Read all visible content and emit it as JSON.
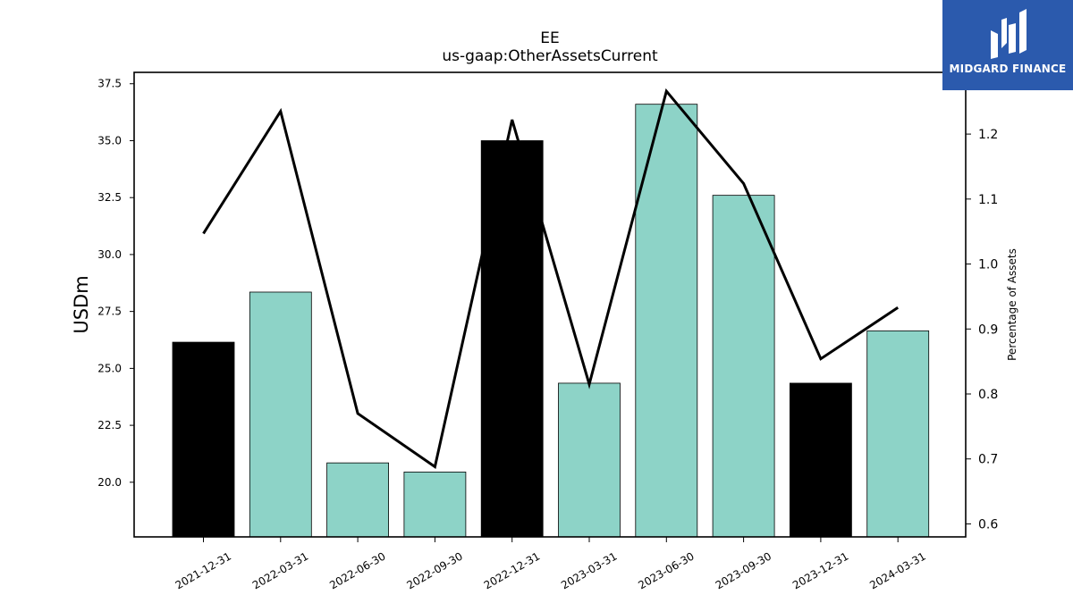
{
  "chart_data": {
    "type": "bar",
    "title": "EE",
    "subtitle": "us-gaap:OtherAssetsCurrent",
    "ylabel": "USDm",
    "ylabel_right": "Percentage of Assets",
    "categories": [
      "2021-12-31",
      "2022-03-31",
      "2022-06-30",
      "2022-09-30",
      "2022-12-31",
      "2023-03-31",
      "2023-06-30",
      "2023-09-30",
      "2023-12-31",
      "2024-03-31"
    ],
    "values": [
      26.15,
      28.35,
      20.85,
      20.45,
      35.0,
      24.35,
      36.6,
      32.6,
      24.35,
      26.65
    ],
    "bar_colors": [
      "#000000",
      "#8dd3c7",
      "#8dd3c7",
      "#8dd3c7",
      "#000000",
      "#8dd3c7",
      "#8dd3c7",
      "#8dd3c7",
      "#000000",
      "#8dd3c7"
    ],
    "line_series": {
      "name": "Percentage of Assets",
      "values": [
        1.047,
        1.235,
        0.77,
        0.688,
        1.222,
        0.815,
        1.266,
        1.124,
        0.854,
        0.933
      ],
      "color": "#000000"
    },
    "ylim": [
      17.6,
      38.0
    ],
    "ylim_right": [
      0.58,
      1.295
    ],
    "yticks": [
      "20.0",
      "22.5",
      "25.0",
      "27.5",
      "30.0",
      "32.5",
      "35.0",
      "37.5"
    ],
    "yticks_right": [
      "0.6",
      "0.7",
      "0.8",
      "0.9",
      "1.0",
      "1.1",
      "1.2"
    ],
    "grid": false,
    "legend": "none"
  },
  "logo": {
    "text": "MIDGARD FINANCE",
    "background": "#2b5aad"
  }
}
